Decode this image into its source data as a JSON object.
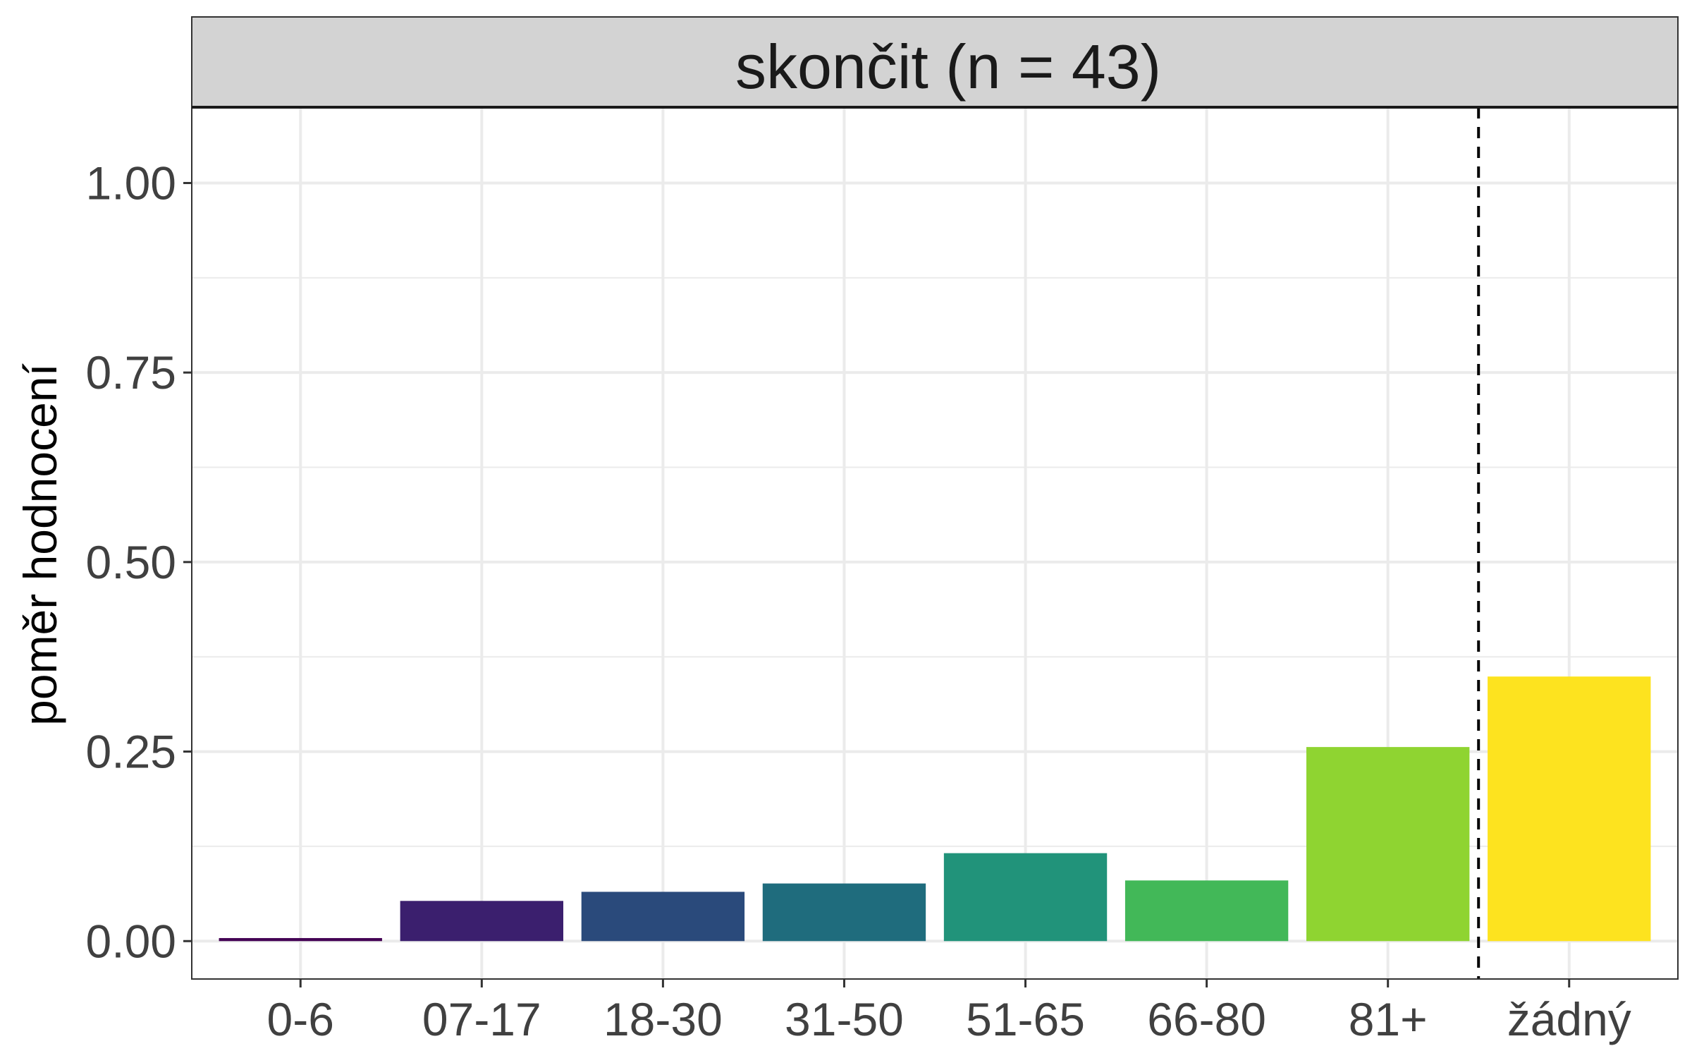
{
  "chart_data": {
    "type": "bar",
    "title": "skončit (n = 43)",
    "xlabel": "",
    "ylabel": "poměr hodnocení",
    "categories": [
      "0-6",
      "07-17",
      "18-30",
      "31-50",
      "51-65",
      "66-80",
      "81+",
      "žádný"
    ],
    "values": [
      0.004,
      0.053,
      0.065,
      0.076,
      0.116,
      0.08,
      0.256,
      0.349
    ],
    "colors": [
      "#440154",
      "#3B1F6E",
      "#2A4A7B",
      "#1F6C7D",
      "#21937A",
      "#42B858",
      "#8FD431",
      "#FDE31F"
    ],
    "ylim": [
      -0.05,
      1.1
    ],
    "yticks": [
      0.0,
      0.25,
      0.5,
      0.75,
      1.0
    ],
    "ytick_labels": [
      "0.00",
      "0.25",
      "0.50",
      "0.75",
      "1.00"
    ],
    "grid": true,
    "reference_line": {
      "between": [
        "81+",
        "žádný"
      ],
      "style": "dashed"
    },
    "strip_background": "#D3D3D3"
  }
}
